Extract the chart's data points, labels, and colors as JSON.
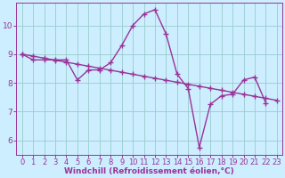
{
  "x_data": [
    0,
    1,
    2,
    3,
    4,
    5,
    6,
    7,
    8,
    9,
    10,
    11,
    12,
    13,
    14,
    15,
    16,
    17,
    18,
    19,
    20,
    21,
    22,
    23
  ],
  "y_main": [
    9.0,
    8.8,
    8.8,
    8.8,
    8.8,
    8.1,
    8.45,
    8.45,
    8.7,
    9.3,
    10.0,
    10.4,
    10.55,
    9.7,
    8.3,
    7.8,
    5.75,
    7.25,
    7.55,
    7.6,
    8.1,
    8.2,
    7.3,
    null
  ],
  "y_trend": [
    9.0,
    8.93,
    8.86,
    8.79,
    8.72,
    8.65,
    8.58,
    8.51,
    8.44,
    8.37,
    8.3,
    8.23,
    8.16,
    8.09,
    8.02,
    7.95,
    7.88,
    7.81,
    7.74,
    7.67,
    7.6,
    7.53,
    7.46,
    7.39
  ],
  "line_color": "#993399",
  "bg_color": "#cceeff",
  "grid_color": "#99cccc",
  "xlabel": "Windchill (Refroidissement éolien,°C)",
  "xlim_min": -0.5,
  "xlim_max": 23.5,
  "ylim_min": 5.5,
  "ylim_max": 10.8,
  "yticks": [
    6,
    7,
    8,
    9,
    10
  ],
  "xlabel_fontsize": 6.5,
  "tick_fontsize": 6.0,
  "marker": "+",
  "markersize": 5,
  "linewidth": 1.0
}
